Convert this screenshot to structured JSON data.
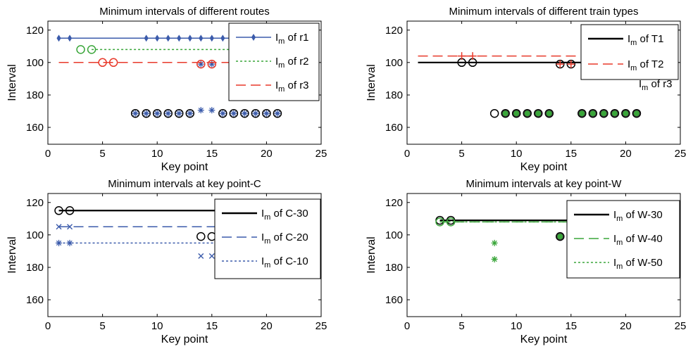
{
  "chart_data": [
    {
      "type": "line",
      "title": "Minimum intervals of different routes",
      "xlabel": "Key point",
      "ylabel": "Interval",
      "xlim": [
        0,
        25
      ],
      "xticks": [
        0,
        5,
        10,
        15,
        20,
        25
      ],
      "yticks": [
        "120",
        "100",
        "180",
        "160"
      ],
      "legend_position": "top-right",
      "legend": [
        {
          "label": "I",
          "sub": "m",
          "suffix": " of r1"
        },
        {
          "label": "I",
          "sub": "m",
          "suffix": " of r2"
        },
        {
          "label": "I",
          "sub": "m",
          "suffix": " of r3"
        }
      ],
      "series": [
        {
          "name": "Im of r1",
          "color": "#3b5bab",
          "line": "solid",
          "marker": "diamond",
          "level": 115,
          "line_x": [
            1,
            21
          ],
          "marker_x": [
            1,
            2,
            9,
            10,
            11,
            12,
            13,
            14,
            15,
            16,
            17,
            18,
            19,
            20,
            21
          ],
          "points": [
            [
              1,
              175
            ],
            [
              14,
              99
            ],
            [
              15,
              99
            ],
            [
              8,
              175
            ],
            [
              9,
              175
            ],
            [
              10,
              175
            ],
            [
              11,
              175
            ],
            [
              12,
              175
            ],
            [
              13,
              175
            ],
            [
              16,
              175
            ],
            [
              17,
              175
            ],
            [
              18,
              175
            ],
            [
              19,
              175
            ],
            [
              20,
              175
            ],
            [
              21,
              175
            ]
          ],
          "point_marker": "star"
        },
        {
          "name": "Im of r2",
          "color": "#3aa63a",
          "line": "dotted",
          "marker": "circle",
          "level": 108,
          "line_x": [
            4,
            21
          ],
          "marker_x": [
            3,
            4
          ],
          "points": [],
          "point_marker": "circle"
        },
        {
          "name": "Im of r3",
          "color": "#e8392a",
          "line": "dashed",
          "marker": "circle",
          "level": 100,
          "line_x": [
            1,
            21
          ],
          "marker_x": [
            5,
            6
          ],
          "points": [
            [
              1,
              175
            ],
            [
              7,
              175
            ],
            [
              8,
              175
            ],
            [
              9,
              175
            ],
            [
              10,
              175
            ],
            [
              11,
              175
            ],
            [
              12,
              175
            ],
            [
              13,
              175
            ],
            [
              14,
              99
            ],
            [
              15,
              99
            ],
            [
              16,
              175
            ],
            [
              17,
              175
            ],
            [
              18,
              175
            ],
            [
              19,
              175
            ],
            [
              20,
              175
            ],
            [
              21,
              175
            ]
          ],
          "point_marker": "circle"
        }
      ]
    },
    {
      "type": "line",
      "title": "Minimum intervals of different train types",
      "xlabel": "Key point",
      "ylabel": "Interval",
      "xlim": [
        0,
        25
      ],
      "xticks": [
        0,
        5,
        10,
        15,
        20,
        25
      ],
      "yticks": [
        "120",
        "100",
        "180",
        "160"
      ],
      "legend_position": "top-right",
      "legend": [
        {
          "label": "I",
          "sub": "m",
          "suffix": " of T1"
        },
        {
          "label": "I",
          "sub": "m",
          "suffix": " of T2"
        }
      ],
      "stray_legend": {
        "label": "I",
        "sub": "m",
        "suffix": " of r3"
      },
      "series": [
        {
          "name": "Im of T1",
          "color": "#000000",
          "line": "solid",
          "marker": "circle",
          "level": 100,
          "line_x": [
            1,
            21
          ],
          "marker_x": [
            5,
            6
          ],
          "points": [
            [
              1,
              175
            ],
            [
              8,
              175
            ],
            [
              9,
              175
            ],
            [
              10,
              175
            ],
            [
              11,
              175
            ],
            [
              12,
              175
            ],
            [
              13,
              175
            ],
            [
              14,
              99
            ],
            [
              15,
              99
            ],
            [
              16,
              175
            ],
            [
              17,
              175
            ],
            [
              18,
              175
            ],
            [
              19,
              175
            ],
            [
              20,
              175
            ],
            [
              21,
              175
            ]
          ],
          "point_marker": "circle"
        },
        {
          "name": "Im of T2",
          "color": "#e8392a",
          "line": "dashed",
          "marker": "plus",
          "level": 104,
          "line_x": [
            1,
            21
          ],
          "marker_x": [
            5,
            6
          ],
          "points": [
            [
              1,
              175
            ],
            [
              8,
              175
            ],
            [
              9,
              175
            ],
            [
              10,
              175
            ],
            [
              11,
              175
            ],
            [
              12,
              175
            ],
            [
              13,
              175
            ],
            [
              14,
              99
            ],
            [
              15,
              99
            ],
            [
              16,
              175
            ],
            [
              17,
              175
            ],
            [
              18,
              175
            ],
            [
              19,
              175
            ],
            [
              20,
              175
            ],
            [
              21,
              175
            ]
          ],
          "point_marker": "plus"
        }
      ]
    },
    {
      "type": "line",
      "title": "Minimum intervals at key point-C",
      "xlabel": "Key point",
      "ylabel": "Interval",
      "xlim": [
        0,
        25
      ],
      "xticks": [
        0,
        5,
        10,
        15,
        20,
        25
      ],
      "yticks": [
        "120",
        "100",
        "180",
        "160"
      ],
      "legend_position": "top-right",
      "legend": [
        {
          "label": "I",
          "sub": "m",
          "suffix": " of C-30"
        },
        {
          "label": "I",
          "sub": "m",
          "suffix": " of C-20"
        },
        {
          "label": "I",
          "sub": "m",
          "suffix": " of C-10"
        }
      ],
      "series": [
        {
          "name": "Im of C-30",
          "color": "#000000",
          "line": "solid",
          "marker": "circle",
          "level": 115,
          "line_x": [
            1,
            21
          ],
          "marker_x": [
            1,
            2
          ],
          "points": [
            [
              14,
              99
            ],
            [
              15,
              99
            ],
            [
              8,
              175
            ],
            [
              9,
              175
            ],
            [
              10,
              175
            ],
            [
              11,
              175
            ],
            [
              12,
              175
            ],
            [
              13,
              175
            ],
            [
              16,
              175
            ],
            [
              17,
              175
            ],
            [
              18,
              175
            ],
            [
              19,
              175
            ],
            [
              20,
              175
            ],
            [
              21,
              175
            ]
          ],
          "point_marker": "circle"
        },
        {
          "name": "Im of C-20",
          "color": "#3b5bab",
          "line": "dashed",
          "marker": "x",
          "level": 105,
          "line_x": [
            1,
            21
          ],
          "marker_x": [
            1,
            2
          ],
          "points": [
            [
              14,
              87
            ],
            [
              15,
              87
            ]
          ],
          "point_marker": "x"
        },
        {
          "name": "Im of C-10",
          "color": "#3b5bab",
          "line": "dotted",
          "marker": "star",
          "level": 95,
          "line_x": [
            1,
            21
          ],
          "marker_x": [
            1,
            2
          ],
          "points": [
            [
              14,
              177
            ],
            [
              15,
              177
            ],
            [
              8,
              175
            ],
            [
              9,
              175
            ],
            [
              10,
              175
            ],
            [
              11,
              175
            ],
            [
              12,
              175
            ],
            [
              13,
              175
            ],
            [
              16,
              175
            ],
            [
              17,
              175
            ],
            [
              18,
              175
            ],
            [
              19,
              175
            ],
            [
              20,
              175
            ],
            [
              21,
              175
            ]
          ],
          "point_marker": "star"
        }
      ]
    },
    {
      "type": "line",
      "title": "Minimum intervals at key point-W",
      "xlabel": "Key point",
      "ylabel": "Interval",
      "xlim": [
        0,
        25
      ],
      "xticks": [
        0,
        5,
        10,
        15,
        20,
        25
      ],
      "yticks": [
        "120",
        "100",
        "180",
        "160"
      ],
      "legend_position": "top-right",
      "legend": [
        {
          "label": "I",
          "sub": "m",
          "suffix": " of W-30"
        },
        {
          "label": "I",
          "sub": "m",
          "suffix": " of W-40"
        },
        {
          "label": "I",
          "sub": "m",
          "suffix": " of W-50"
        }
      ],
      "series": [
        {
          "name": "Im of W-30",
          "color": "#000000",
          "line": "solid",
          "marker": "circle",
          "level": 109,
          "line_x": [
            3,
            21
          ],
          "marker_x": [
            3,
            4
          ],
          "points": [
            [
              8,
              175
            ],
            [
              14,
              99
            ],
            [
              9,
              175
            ],
            [
              10,
              175
            ],
            [
              11,
              175
            ],
            [
              12,
              175
            ],
            [
              13,
              175
            ],
            [
              16,
              175
            ],
            [
              17,
              175
            ],
            [
              18,
              175
            ],
            [
              19,
              175
            ],
            [
              20,
              175
            ],
            [
              21,
              175
            ]
          ],
          "point_marker": "circle"
        },
        {
          "name": "Im of W-40",
          "color": "#3aa63a",
          "line": "dashed",
          "marker": "plus",
          "level": 108,
          "line_x": [
            3,
            21
          ],
          "marker_x": [],
          "points": [
            [
              8,
              95
            ],
            [
              8,
              85
            ]
          ],
          "point_marker": "star"
        },
        {
          "name": "Im of W-50",
          "color": "#3aa63a",
          "line": "dotted",
          "marker": "circle",
          "level": 108,
          "line_x": [
            3,
            21
          ],
          "marker_x": [
            3,
            4
          ],
          "points": [
            [
              9,
              175
            ],
            [
              10,
              175
            ],
            [
              11,
              175
            ],
            [
              12,
              175
            ],
            [
              13,
              175
            ],
            [
              14,
              99
            ],
            [
              16,
              175
            ],
            [
              17,
              175
            ],
            [
              18,
              175
            ],
            [
              19,
              175
            ],
            [
              20,
              175
            ],
            [
              21,
              175
            ]
          ],
          "point_marker": "dot"
        }
      ]
    }
  ]
}
